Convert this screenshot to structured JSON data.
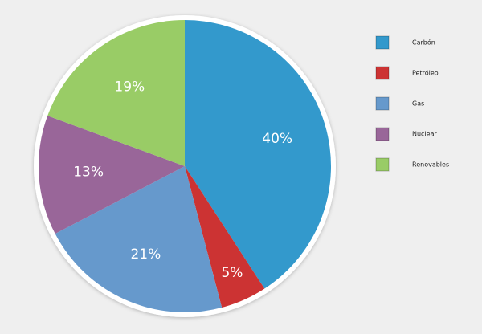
{
  "chart_data": {
    "type": "pie",
    "categories": [
      "Carbón",
      "Petróleo",
      "Gas",
      "Nuclear",
      "Renovables"
    ],
    "values": [
      40,
      5,
      21,
      13,
      19
    ],
    "labels": [
      "40%",
      "5%",
      "21%",
      "13%",
      "19%"
    ],
    "colors": [
      "#3399cc",
      "#cc3333",
      "#6699cc",
      "#996699",
      "#99cc66"
    ],
    "legend_position": "right",
    "start_angle": "top, clockwise"
  }
}
